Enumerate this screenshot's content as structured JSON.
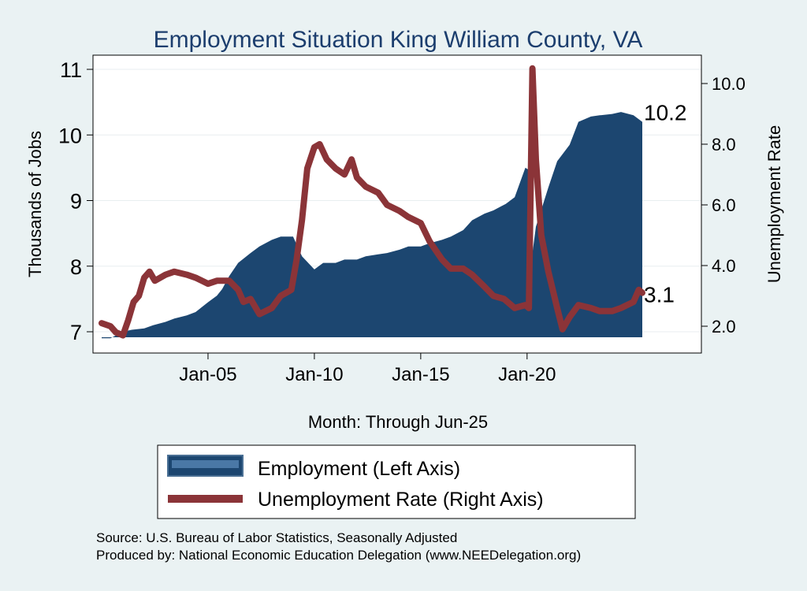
{
  "chart_data": {
    "type": "area",
    "title": "Employment Situation King William  County, VA",
    "xlabel": "Month: Through Jun-25",
    "ylabel_left": "Thousands of Jobs",
    "ylabel_right": "Unemployment Rate",
    "x_ticks": [
      "Jan-05",
      "Jan-10",
      "Jan-15",
      "Jan-20"
    ],
    "x_range": [
      "2000-01",
      "2025-06"
    ],
    "y_left_range": [
      6.8,
      11.0
    ],
    "y_left_ticks": [
      "7",
      "8",
      "9",
      "10",
      "11"
    ],
    "y_right_range": [
      1.6,
      10.6
    ],
    "y_right_ticks": [
      "2.0",
      "4.0",
      "6.0",
      "8.0",
      "10.0"
    ],
    "grid": "horizontal at left-axis ticks",
    "legend_position": "bottom",
    "colors": {
      "employment": "#1c4670",
      "unemployment": "#8b3438",
      "background": "#eaf2f3",
      "plot_background": "#ffffff",
      "title": "#1c3e6e"
    },
    "series": [
      {
        "name": "Employment (Left Axis)",
        "axis": "left",
        "kind": "area",
        "end_label": "10.2",
        "points": [
          [
            "2000-01",
            6.9
          ],
          [
            "2000-06",
            6.9
          ],
          [
            "2001-01",
            7.0
          ],
          [
            "2001-06",
            7.03
          ],
          [
            "2002-01",
            7.05
          ],
          [
            "2002-06",
            7.1
          ],
          [
            "2003-01",
            7.15
          ],
          [
            "2003-06",
            7.2
          ],
          [
            "2004-01",
            7.25
          ],
          [
            "2004-06",
            7.3
          ],
          [
            "2005-01",
            7.45
          ],
          [
            "2005-06",
            7.55
          ],
          [
            "2005-09",
            7.65
          ],
          [
            "2006-01",
            7.85
          ],
          [
            "2006-06",
            8.05
          ],
          [
            "2007-01",
            8.2
          ],
          [
            "2007-06",
            8.3
          ],
          [
            "2008-01",
            8.4
          ],
          [
            "2008-06",
            8.45
          ],
          [
            "2009-01",
            8.45
          ],
          [
            "2009-06",
            8.15
          ],
          [
            "2010-01",
            7.95
          ],
          [
            "2010-06",
            8.05
          ],
          [
            "2011-01",
            8.05
          ],
          [
            "2011-06",
            8.1
          ],
          [
            "2012-01",
            8.1
          ],
          [
            "2012-06",
            8.15
          ],
          [
            "2013-01",
            8.18
          ],
          [
            "2013-06",
            8.2
          ],
          [
            "2014-01",
            8.25
          ],
          [
            "2014-06",
            8.3
          ],
          [
            "2015-01",
            8.3
          ],
          [
            "2015-06",
            8.35
          ],
          [
            "2016-01",
            8.4
          ],
          [
            "2016-06",
            8.45
          ],
          [
            "2017-01",
            8.55
          ],
          [
            "2017-06",
            8.7
          ],
          [
            "2018-01",
            8.8
          ],
          [
            "2018-06",
            8.85
          ],
          [
            "2019-01",
            8.95
          ],
          [
            "2019-06",
            9.05
          ],
          [
            "2019-12",
            9.5
          ],
          [
            "2020-03",
            9.45
          ],
          [
            "2020-04",
            8.2
          ],
          [
            "2020-06",
            8.6
          ],
          [
            "2021-01",
            9.2
          ],
          [
            "2021-06",
            9.6
          ],
          [
            "2022-01",
            9.85
          ],
          [
            "2022-06",
            10.2
          ],
          [
            "2023-01",
            10.28
          ],
          [
            "2023-06",
            10.3
          ],
          [
            "2024-01",
            10.32
          ],
          [
            "2024-06",
            10.35
          ],
          [
            "2025-01",
            10.3
          ],
          [
            "2025-06",
            10.2
          ]
        ]
      },
      {
        "name": "Unemployment Rate (Right Axis)",
        "axis": "right",
        "kind": "line",
        "end_label": "3.1",
        "points": [
          [
            "2000-01",
            2.1
          ],
          [
            "2000-06",
            2.0
          ],
          [
            "2000-09",
            1.8
          ],
          [
            "2001-01",
            1.7
          ],
          [
            "2001-04",
            2.2
          ],
          [
            "2001-07",
            2.8
          ],
          [
            "2001-10",
            3.0
          ],
          [
            "2002-01",
            3.6
          ],
          [
            "2002-04",
            3.8
          ],
          [
            "2002-07",
            3.5
          ],
          [
            "2003-01",
            3.7
          ],
          [
            "2003-06",
            3.8
          ],
          [
            "2004-01",
            3.7
          ],
          [
            "2004-06",
            3.6
          ],
          [
            "2005-01",
            3.4
          ],
          [
            "2005-06",
            3.5
          ],
          [
            "2006-01",
            3.5
          ],
          [
            "2006-06",
            3.2
          ],
          [
            "2006-09",
            2.8
          ],
          [
            "2007-01",
            2.9
          ],
          [
            "2007-06",
            2.4
          ],
          [
            "2008-01",
            2.6
          ],
          [
            "2008-06",
            3.0
          ],
          [
            "2008-12",
            3.2
          ],
          [
            "2009-03",
            4.2
          ],
          [
            "2009-06",
            5.5
          ],
          [
            "2009-09",
            7.2
          ],
          [
            "2010-01",
            7.9
          ],
          [
            "2010-04",
            8.0
          ],
          [
            "2010-08",
            7.5
          ],
          [
            "2011-01",
            7.2
          ],
          [
            "2011-06",
            7.0
          ],
          [
            "2011-10",
            7.5
          ],
          [
            "2012-01",
            6.9
          ],
          [
            "2012-06",
            6.6
          ],
          [
            "2013-01",
            6.4
          ],
          [
            "2013-06",
            6.0
          ],
          [
            "2014-01",
            5.8
          ],
          [
            "2014-06",
            5.6
          ],
          [
            "2015-01",
            5.4
          ],
          [
            "2015-06",
            4.8
          ],
          [
            "2016-01",
            4.2
          ],
          [
            "2016-06",
            3.9
          ],
          [
            "2017-01",
            3.9
          ],
          [
            "2017-06",
            3.7
          ],
          [
            "2018-01",
            3.3
          ],
          [
            "2018-06",
            3.0
          ],
          [
            "2018-12",
            2.9
          ],
          [
            "2019-06",
            2.6
          ],
          [
            "2019-12",
            2.7
          ],
          [
            "2020-02",
            2.6
          ],
          [
            "2020-04",
            10.5
          ],
          [
            "2020-06",
            7.5
          ],
          [
            "2020-09",
            5.0
          ],
          [
            "2021-01",
            3.8
          ],
          [
            "2021-06",
            2.6
          ],
          [
            "2021-09",
            1.9
          ],
          [
            "2022-01",
            2.3
          ],
          [
            "2022-06",
            2.7
          ],
          [
            "2023-01",
            2.6
          ],
          [
            "2023-06",
            2.5
          ],
          [
            "2024-01",
            2.5
          ],
          [
            "2024-06",
            2.6
          ],
          [
            "2025-01",
            2.8
          ],
          [
            "2025-04",
            3.2
          ],
          [
            "2025-06",
            3.1
          ]
        ]
      }
    ],
    "source_lines": [
      "Source: U.S. Bureau of Labor Statistics, Seasonally Adjusted",
      "Produced by: National Economic Education Delegation (www.NEEDelegation.org)"
    ]
  }
}
